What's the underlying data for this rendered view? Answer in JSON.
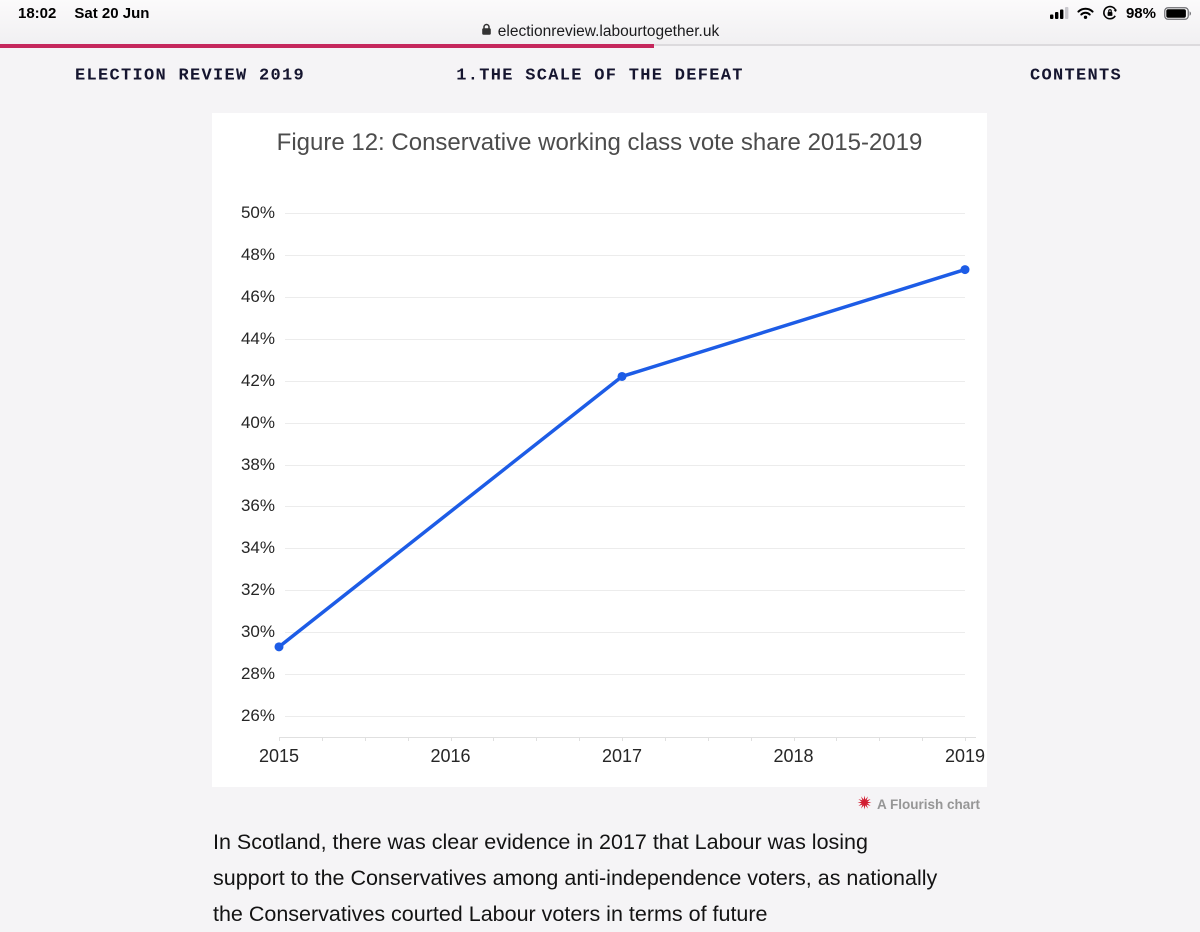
{
  "status_bar": {
    "time": "18:02",
    "date": "Sat 20 Jun",
    "battery_percent": "98%"
  },
  "browser": {
    "url": "electionreview.labourtogether.uk",
    "progress_percent": 54.5
  },
  "site_header": {
    "brand": "ELECTION REVIEW 2019",
    "section": "1.THE SCALE OF THE DEFEAT",
    "contents_link": "CONTENTS"
  },
  "chart_data": {
    "type": "line",
    "title": "Figure 12: Conservative working class vote share 2015-2019",
    "xlabel": "",
    "ylabel": "",
    "xlim": [
      2015,
      2019
    ],
    "ylim": [
      26,
      50
    ],
    "x_ticks": [
      2015,
      2016,
      2017,
      2018,
      2019
    ],
    "y_ticks": [
      50,
      48,
      46,
      44,
      42,
      40,
      38,
      36,
      34,
      32,
      30,
      28,
      26
    ],
    "y_tick_suffix": "%",
    "grid": "horizontal",
    "legend": "none",
    "series": [
      {
        "name": "Conservative working class vote share",
        "color": "#1d5ce6",
        "points": [
          {
            "x": 2015,
            "y": 29.3
          },
          {
            "x": 2017,
            "y": 42.2
          },
          {
            "x": 2019,
            "y": 47.3
          }
        ]
      }
    ]
  },
  "attribution": {
    "label": "A Flourish chart",
    "icon_color": "#d21d32"
  },
  "article": {
    "lines": [
      "In Scotland, there was clear evidence in 2017 that Labour was losing",
      "support to the Conservatives among anti-independence voters, as nationally",
      "the Conservatives courted Labour voters in terms of future"
    ]
  },
  "colors": {
    "progress_red": "#c5275c",
    "header_text": "#15152f",
    "line_blue": "#1d5ce6",
    "page_bg": "#f5f4f6",
    "card_bg": "#ffffff",
    "gridline": "#ececec",
    "title_text": "#4c4c4c"
  }
}
